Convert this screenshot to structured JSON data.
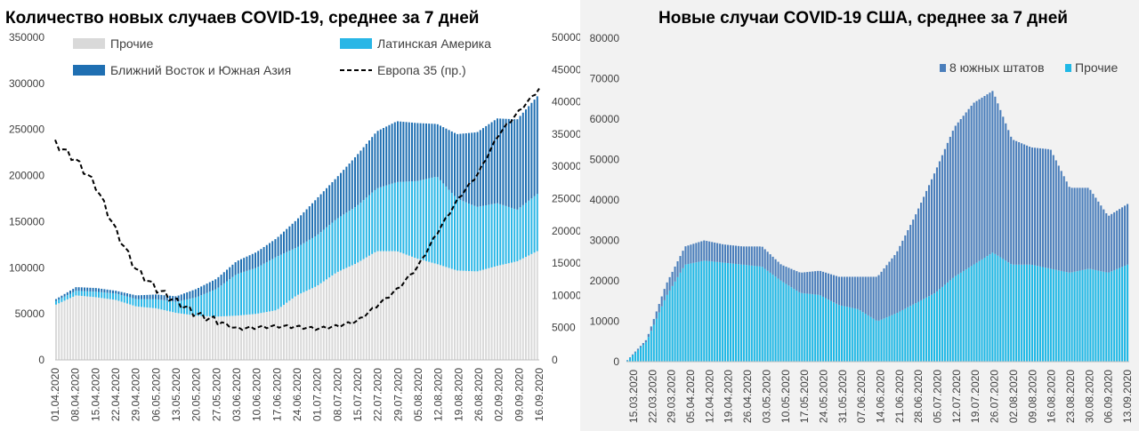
{
  "chart_data": [
    {
      "type": "bar",
      "stacked": true,
      "title": "Количество новых случаев COVID-19, среднее за 7 дней",
      "x_ticks": [
        "01.04.2020",
        "08.04.2020",
        "15.04.2020",
        "22.04.2020",
        "29.04.2020",
        "06.05.2020",
        "13.05.2020",
        "20.05.2020",
        "27.05.2020",
        "03.06.2020",
        "10.06.2020",
        "17.06.2020",
        "24.06.2020",
        "01.07.2020",
        "08.07.2020",
        "15.07.2020",
        "22.07.2020",
        "29.07.2020",
        "05.08.2020",
        "12.08.2020",
        "19.08.2020",
        "26.08.2020",
        "02.09.2020",
        "09.09.2020",
        "16.09.2020"
      ],
      "y_left": {
        "min": 0,
        "max": 350000,
        "ticks": [
          "0",
          "50000",
          "100000",
          "150000",
          "200000",
          "250000",
          "300000",
          "350000"
        ]
      },
      "y_right": {
        "min": 0,
        "max": 50000,
        "ticks": [
          "0",
          "5000",
          "10000",
          "15000",
          "20000",
          "25000",
          "30000",
          "35000",
          "40000",
          "45000",
          "50000"
        ]
      },
      "legend_position": "top",
      "series": [
        {
          "name": "Прочие",
          "color": "#d9d9d9",
          "values": [
            60000,
            70000,
            68000,
            65000,
            58000,
            56000,
            51000,
            48000,
            47000,
            48000,
            50000,
            54000,
            70000,
            80000,
            95000,
            105000,
            118000,
            118000,
            110000,
            104000,
            97000,
            96000,
            102000,
            107000,
            118000
          ]
        },
        {
          "name": "Латинская Америка",
          "color": "#29b6e6",
          "values": [
            4000,
            5000,
            6000,
            7000,
            8000,
            10000,
            12000,
            20000,
            30000,
            45000,
            50000,
            58000,
            52000,
            55000,
            58000,
            62000,
            68000,
            75000,
            84000,
            95000,
            78000,
            70000,
            68000,
            56000,
            62000
          ]
        },
        {
          "name": "Ближний Восток и Южная Азия",
          "color": "#1f6fb2",
          "values": [
            2000,
            4000,
            4000,
            3000,
            4000,
            5000,
            6000,
            9000,
            11000,
            14000,
            17000,
            20000,
            30000,
            40000,
            45000,
            55000,
            62000,
            66000,
            63000,
            57000,
            70000,
            81000,
            92000,
            98000,
            106000
          ]
        }
      ],
      "line": {
        "name": "Европа 35 (пр.)",
        "color": "#000000",
        "axis": "right",
        "values": [
          33500,
          31000,
          27000,
          20000,
          14000,
          11000,
          9000,
          7000,
          6000,
          4800,
          5000,
          5200,
          5100,
          4800,
          5200,
          6000,
          8500,
          11000,
          14500,
          20000,
          25000,
          29000,
          35000,
          38500,
          42000
        ]
      }
    },
    {
      "type": "bar",
      "stacked": true,
      "title": "Новые случаи COVID-19  США, среднее за 7 дней",
      "x_ticks": [
        "15.03.2020",
        "22.03.2020",
        "29.03.2020",
        "05.04.2020",
        "12.04.2020",
        "19.04.2020",
        "26.04.2020",
        "03.05.2020",
        "10.05.2020",
        "17.05.2020",
        "24.05.2020",
        "31.05.2020",
        "07.06.2020",
        "14.06.2020",
        "21.06.2020",
        "28.06.2020",
        "05.07.2020",
        "12.07.2020",
        "19.07.2020",
        "26.07.2020",
        "02.08.2020",
        "09.08.2020",
        "16.08.2020",
        "23.08.2020",
        "30.08.2020",
        "06.09.2020",
        "13.09.2020"
      ],
      "y": {
        "min": 0,
        "max": 80000,
        "ticks": [
          "0",
          "10000",
          "20000",
          "30000",
          "40000",
          "50000",
          "60000",
          "70000",
          "80000"
        ]
      },
      "legend_position": "top-right",
      "series": [
        {
          "name": "8 южных штатов",
          "color": "#4a7ebb",
          "values": [
            100,
            500,
            3000,
            4500,
            5000,
            4500,
            4500,
            5000,
            4000,
            5000,
            6000,
            7000,
            8000,
            11000,
            15000,
            22000,
            30000,
            37000,
            40000,
            40000,
            31000,
            29000,
            29500,
            21000,
            20000,
            14000,
            15000
          ]
        },
        {
          "name": "Прочие",
          "color": "#1fb8e6",
          "values": [
            300,
            5000,
            16000,
            24000,
            25000,
            24500,
            24000,
            23500,
            20000,
            17000,
            16500,
            14000,
            13000,
            10000,
            12000,
            14500,
            17000,
            21000,
            24000,
            27000,
            24000,
            24000,
            23000,
            22000,
            23000,
            22000,
            24000
          ]
        }
      ]
    }
  ]
}
